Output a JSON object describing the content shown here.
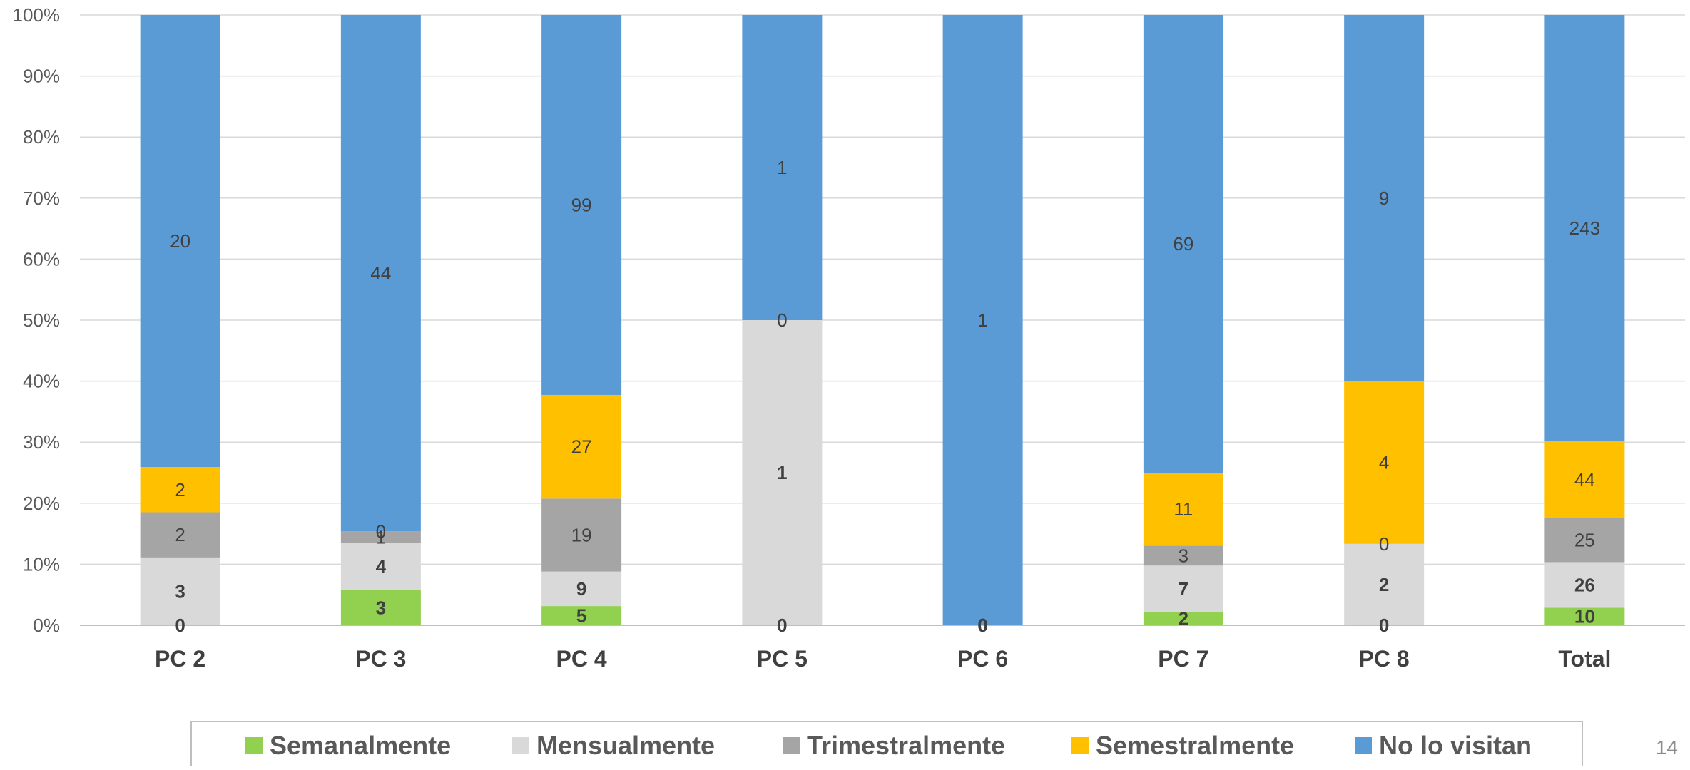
{
  "chart_data": {
    "type": "bar",
    "stacked": "percent",
    "categories": [
      "PC 2",
      "PC 3",
      "PC 4",
      "PC 5",
      "PC 6",
      "PC 7",
      "PC 8",
      "Total"
    ],
    "series": [
      {
        "name": "Semanalmente",
        "color": "#92d050",
        "values": [
          0,
          3,
          5,
          0,
          0,
          2,
          0,
          10
        ]
      },
      {
        "name": "Mensualmente",
        "color": "#d9d9d9",
        "values": [
          3,
          4,
          9,
          1,
          0,
          7,
          2,
          26
        ]
      },
      {
        "name": "Trimestralmente",
        "color": "#a5a5a5",
        "values": [
          2,
          1,
          19,
          0,
          0,
          3,
          0,
          25
        ]
      },
      {
        "name": "Semestralmente",
        "color": "#ffc000",
        "values": [
          2,
          0,
          27,
          0,
          0,
          11,
          4,
          44
        ]
      },
      {
        "name": "No lo visitan",
        "color": "#5b9bd5",
        "values": [
          20,
          44,
          99,
          1,
          1,
          69,
          9,
          243
        ]
      }
    ],
    "ylim": [
      0,
      100
    ],
    "yticks": [
      "0%",
      "10%",
      "20%",
      "30%",
      "40%",
      "50%",
      "60%",
      "70%",
      "80%",
      "90%",
      "100%"
    ],
    "grid": true,
    "legend_position": "bottom"
  },
  "page_number": "14"
}
